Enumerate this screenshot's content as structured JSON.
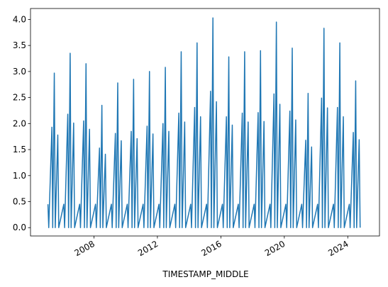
{
  "chart_data": {
    "type": "line",
    "xlabel": "TIMESTAMP_MIDDLE",
    "x": [
      2005.1,
      2005.15,
      2005.35,
      2005.4,
      2005.5,
      2005.56,
      2005.72,
      2005.78,
      2006.1,
      2006.15,
      2006.35,
      2006.4,
      2006.5,
      2006.56,
      2006.72,
      2006.78,
      2007.1,
      2007.15,
      2007.35,
      2007.4,
      2007.5,
      2007.56,
      2007.72,
      2007.78,
      2008.1,
      2008.15,
      2008.35,
      2008.4,
      2008.5,
      2008.56,
      2008.72,
      2008.78,
      2009.1,
      2009.15,
      2009.35,
      2009.4,
      2009.5,
      2009.56,
      2009.72,
      2009.78,
      2010.1,
      2010.15,
      2010.35,
      2010.4,
      2010.5,
      2010.56,
      2010.72,
      2010.78,
      2011.1,
      2011.15,
      2011.35,
      2011.4,
      2011.5,
      2011.56,
      2011.72,
      2011.78,
      2012.1,
      2012.15,
      2012.35,
      2012.4,
      2012.5,
      2012.56,
      2012.72,
      2012.78,
      2013.1,
      2013.15,
      2013.35,
      2013.4,
      2013.5,
      2013.56,
      2013.72,
      2013.78,
      2014.1,
      2014.15,
      2014.35,
      2014.4,
      2014.5,
      2014.56,
      2014.72,
      2014.78,
      2015.1,
      2015.15,
      2015.35,
      2015.4,
      2015.5,
      2015.56,
      2015.72,
      2015.78,
      2016.1,
      2016.15,
      2016.35,
      2016.4,
      2016.5,
      2016.56,
      2016.72,
      2016.78,
      2017.1,
      2017.15,
      2017.35,
      2017.4,
      2017.5,
      2017.56,
      2017.72,
      2017.78,
      2018.1,
      2018.15,
      2018.35,
      2018.4,
      2018.5,
      2018.56,
      2018.72,
      2018.78,
      2019.1,
      2019.15,
      2019.35,
      2019.4,
      2019.5,
      2019.56,
      2019.72,
      2019.78,
      2020.1,
      2020.15,
      2020.35,
      2020.4,
      2020.5,
      2020.56,
      2020.72,
      2020.78,
      2021.1,
      2021.15,
      2021.35,
      2021.4,
      2021.5,
      2021.56,
      2021.72,
      2021.78,
      2022.1,
      2022.15,
      2022.35,
      2022.4,
      2022.5,
      2022.56,
      2022.72,
      2022.78,
      2023.1,
      2023.15,
      2023.35,
      2023.4,
      2023.5,
      2023.56,
      2023.72,
      2023.78,
      2024.1,
      2024.15,
      2024.35,
      2024.4,
      2024.5,
      2024.56,
      2024.72,
      2024.78
    ],
    "series": [
      {
        "color": "#1f77b4",
        "values": [
          0.45,
          0,
          1.93,
          0,
          2.97,
          0,
          1.78,
          0,
          0.45,
          0,
          2.18,
          0,
          3.35,
          0,
          2.01,
          0,
          0.45,
          0,
          2.05,
          0,
          3.15,
          0,
          1.89,
          0,
          0.45,
          0,
          1.53,
          0,
          2.35,
          0,
          1.41,
          0,
          0.45,
          0,
          1.81,
          0,
          2.78,
          0,
          1.67,
          0,
          0.45,
          0,
          1.85,
          0,
          2.85,
          0,
          1.71,
          0,
          0.45,
          0,
          1.95,
          0,
          3.0,
          0,
          1.8,
          0,
          0.45,
          0,
          2.0,
          0,
          3.08,
          0,
          1.85,
          0,
          0.45,
          0,
          2.2,
          0,
          3.38,
          0,
          2.03,
          0,
          0.45,
          0,
          2.31,
          0,
          3.55,
          0,
          2.13,
          0,
          0.45,
          0,
          2.62,
          0,
          4.03,
          0,
          2.42,
          0,
          0.45,
          0,
          2.13,
          0,
          3.28,
          0,
          1.97,
          0,
          0.45,
          0,
          2.2,
          0,
          3.38,
          0,
          2.03,
          0,
          0.45,
          0,
          2.21,
          0,
          3.4,
          0,
          2.04,
          0,
          0.45,
          0,
          2.57,
          0,
          3.95,
          0,
          2.37,
          0,
          0.45,
          0,
          2.24,
          0,
          3.45,
          0,
          2.07,
          0,
          0.45,
          0,
          1.68,
          0,
          2.58,
          0,
          1.55,
          0,
          0.45,
          0,
          2.49,
          0,
          3.83,
          0,
          2.3,
          0,
          0.45,
          0,
          2.31,
          0,
          3.55,
          0,
          2.13,
          0,
          0.45,
          0,
          1.83,
          0,
          2.82,
          0,
          1.69,
          0
        ]
      }
    ],
    "xlim": [
      2004.0,
      2026.0
    ],
    "xticks": [
      2008,
      2012,
      2016,
      2020,
      2024
    ],
    "ylim": [
      -0.16,
      4.21
    ],
    "yticks": [
      {
        "value": 0,
        "label": "0.0"
      },
      {
        "value": 0.5,
        "label": "0.5"
      },
      {
        "value": 1,
        "label": "1.0"
      },
      {
        "value": 1.5,
        "label": "1.5"
      },
      {
        "value": 2,
        "label": "2.0"
      },
      {
        "value": 2.5,
        "label": "2.5"
      },
      {
        "value": 3,
        "label": "3.0"
      },
      {
        "value": 3.5,
        "label": "3.5"
      },
      {
        "value": 4,
        "label": "4.0"
      }
    ]
  }
}
